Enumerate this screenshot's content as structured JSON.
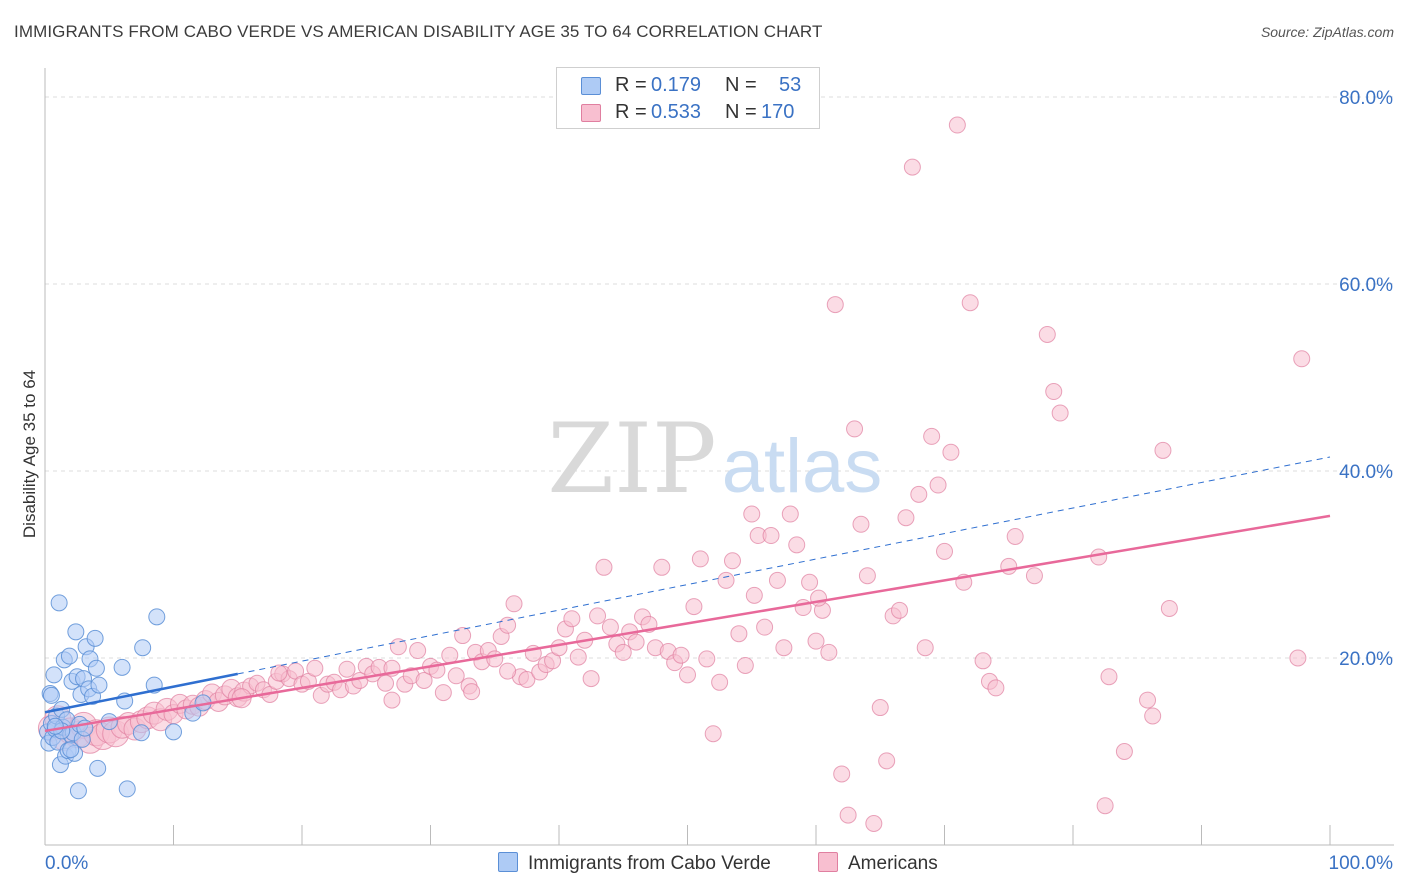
{
  "title": "IMMIGRANTS FROM CABO VERDE VS AMERICAN DISABILITY AGE 35 TO 64 CORRELATION CHART",
  "source": "Source: ZipAtlas.com",
  "watermark": {
    "zip": "ZIP",
    "atlas": "atlas"
  },
  "legend_top": [
    {
      "r_label": "R =",
      "r_value": "0.179",
      "n_label": "N =",
      "n_value": "53"
    },
    {
      "r_label": "R =",
      "r_value": "0.533",
      "n_label": "N =",
      "n_value": "170"
    }
  ],
  "legend_bottom": [
    "Immigrants from Cabo Verde",
    "Americans"
  ],
  "colors": {
    "blue_fill": "#aecbf5",
    "blue_stroke": "#5b8fd6",
    "blue_line": "#2f6fd0",
    "pink_fill": "#f8bfd0",
    "pink_stroke": "#e07fa0",
    "pink_line": "#e8699a",
    "axis_label": "#3a72c4",
    "grid": "#dcdcdc"
  },
  "chart_data": {
    "type": "scatter",
    "title": "IMMIGRANTS FROM CABO VERDE VS AMERICAN DISABILITY AGE 35 TO 64 CORRELATION CHART",
    "xlabel": "",
    "ylabel": "Disability Age 35 to 64",
    "xlim": [
      0,
      100
    ],
    "ylim": [
      0,
      80
    ],
    "x_tick_labels": [
      "0.0%",
      "100.0%"
    ],
    "y_ticks": [
      20,
      40,
      60,
      80
    ],
    "y_tick_labels": [
      "20.0%",
      "40.0%",
      "60.0%",
      "80.0%"
    ],
    "series": [
      {
        "name": "Immigrants from Cabo Verde",
        "R": 0.179,
        "N": 53,
        "trend": {
          "x": [
            0,
            15
          ],
          "y": [
            14.2,
            18.3
          ]
        },
        "trend_dashed": {
          "x": [
            15,
            100
          ],
          "y": [
            18.3,
            41.5
          ]
        },
        "points": [
          [
            0.2,
            12.1
          ],
          [
            0.3,
            10.9
          ],
          [
            0.4,
            16.2
          ],
          [
            0.5,
            13.0
          ],
          [
            0.6,
            11.5
          ],
          [
            0.7,
            18.2
          ],
          [
            0.8,
            12.4
          ],
          [
            0.9,
            13.8
          ],
          [
            1.0,
            11.0
          ],
          [
            1.1,
            25.9
          ],
          [
            1.2,
            8.6
          ],
          [
            1.3,
            14.5
          ],
          [
            1.4,
            12.6
          ],
          [
            1.5,
            19.8
          ],
          [
            1.6,
            9.5
          ],
          [
            1.7,
            13.4
          ],
          [
            1.8,
            10.1
          ],
          [
            1.9,
            20.2
          ],
          [
            2.0,
            11.8
          ],
          [
            2.1,
            17.5
          ],
          [
            2.2,
            12.0
          ],
          [
            2.3,
            9.8
          ],
          [
            2.4,
            22.8
          ],
          [
            2.5,
            18.0
          ],
          [
            2.6,
            5.8
          ],
          [
            2.7,
            12.9
          ],
          [
            2.8,
            16.1
          ],
          [
            2.9,
            11.3
          ],
          [
            3.0,
            17.8
          ],
          [
            3.1,
            12.5
          ],
          [
            3.2,
            21.2
          ],
          [
            3.4,
            16.7
          ],
          [
            3.5,
            19.9
          ],
          [
            3.7,
            15.9
          ],
          [
            3.9,
            22.1
          ],
          [
            4.0,
            18.9
          ],
          [
            4.1,
            8.2
          ],
          [
            4.2,
            17.1
          ],
          [
            5.0,
            13.2
          ],
          [
            6.0,
            19.0
          ],
          [
            6.2,
            15.4
          ],
          [
            6.4,
            6.0
          ],
          [
            7.5,
            12.0
          ],
          [
            7.6,
            21.1
          ],
          [
            8.5,
            17.1
          ],
          [
            8.7,
            24.4
          ],
          [
            10.0,
            12.1
          ],
          [
            11.5,
            14.1
          ],
          [
            12.3,
            15.2
          ],
          [
            0.5,
            16.0
          ],
          [
            1.3,
            12.2
          ],
          [
            2.0,
            10.2
          ],
          [
            0.8,
            12.7
          ]
        ]
      },
      {
        "name": "Americans",
        "R": 0.533,
        "N": 170,
        "trend": {
          "x": [
            0,
            100
          ],
          "y": [
            12.2,
            35.2
          ]
        },
        "points": [
          [
            0.5,
            12.5
          ],
          [
            1.0,
            13.5
          ],
          [
            1.5,
            11.5
          ],
          [
            2.0,
            12.2
          ],
          [
            2.5,
            11.8
          ],
          [
            3.0,
            12.8
          ],
          [
            3.5,
            11.2
          ],
          [
            4.0,
            12.0
          ],
          [
            4.5,
            11.6
          ],
          [
            5.0,
            12.3
          ],
          [
            5.5,
            11.9
          ],
          [
            6.0,
            12.6
          ],
          [
            6.5,
            13.0
          ],
          [
            7.0,
            12.4
          ],
          [
            7.5,
            13.2
          ],
          [
            8.0,
            13.6
          ],
          [
            8.5,
            14.1
          ],
          [
            9.0,
            13.4
          ],
          [
            9.5,
            14.5
          ],
          [
            10.0,
            14.0
          ],
          [
            10.5,
            15.1
          ],
          [
            11.0,
            14.5
          ],
          [
            11.5,
            15.0
          ],
          [
            12.0,
            14.8
          ],
          [
            12.5,
            15.5
          ],
          [
            13.0,
            16.2
          ],
          [
            13.5,
            15.3
          ],
          [
            14.0,
            16.0
          ],
          [
            14.5,
            16.7
          ],
          [
            15.0,
            15.8
          ],
          [
            15.5,
            16.4
          ],
          [
            16.0,
            17.0
          ],
          [
            16.5,
            17.3
          ],
          [
            17.0,
            16.6
          ],
          [
            17.5,
            16.1
          ],
          [
            18.0,
            17.5
          ],
          [
            18.5,
            18.3
          ],
          [
            19.0,
            17.8
          ],
          [
            19.5,
            18.6
          ],
          [
            20.0,
            17.2
          ],
          [
            20.5,
            17.5
          ],
          [
            21.0,
            18.9
          ],
          [
            21.5,
            16.0
          ],
          [
            22.0,
            17.2
          ],
          [
            22.5,
            17.4
          ],
          [
            23.0,
            16.6
          ],
          [
            23.5,
            18.8
          ],
          [
            24.0,
            17.0
          ],
          [
            24.5,
            17.6
          ],
          [
            25.0,
            19.1
          ],
          [
            25.5,
            18.3
          ],
          [
            26.0,
            19.0
          ],
          [
            26.5,
            17.3
          ],
          [
            27.0,
            18.9
          ],
          [
            27.5,
            21.2
          ],
          [
            28.0,
            17.2
          ],
          [
            28.5,
            18.1
          ],
          [
            29.0,
            20.8
          ],
          [
            29.5,
            17.6
          ],
          [
            30.0,
            19.1
          ],
          [
            30.5,
            18.7
          ],
          [
            31.0,
            16.3
          ],
          [
            31.5,
            20.3
          ],
          [
            32.0,
            18.1
          ],
          [
            32.5,
            22.4
          ],
          [
            33.0,
            17.0
          ],
          [
            33.5,
            20.6
          ],
          [
            34.0,
            19.6
          ],
          [
            34.5,
            20.8
          ],
          [
            35.0,
            19.9
          ],
          [
            35.5,
            22.3
          ],
          [
            36.0,
            23.5
          ],
          [
            36.5,
            25.8
          ],
          [
            37.0,
            18.0
          ],
          [
            37.5,
            17.7
          ],
          [
            38.0,
            20.5
          ],
          [
            38.5,
            18.5
          ],
          [
            39.0,
            19.3
          ],
          [
            39.5,
            19.7
          ],
          [
            40.0,
            21.1
          ],
          [
            40.5,
            23.1
          ],
          [
            41.0,
            24.2
          ],
          [
            41.5,
            20.1
          ],
          [
            42.0,
            21.9
          ],
          [
            42.5,
            17.8
          ],
          [
            43.0,
            24.5
          ],
          [
            43.5,
            29.7
          ],
          [
            44.0,
            23.3
          ],
          [
            44.5,
            21.5
          ],
          [
            45.0,
            20.6
          ],
          [
            45.5,
            22.8
          ],
          [
            46.0,
            21.7
          ],
          [
            46.5,
            24.4
          ],
          [
            47.0,
            23.6
          ],
          [
            47.5,
            21.1
          ],
          [
            48.0,
            29.7
          ],
          [
            48.5,
            20.7
          ],
          [
            49.0,
            19.5
          ],
          [
            49.5,
            20.3
          ],
          [
            50.0,
            18.2
          ],
          [
            50.5,
            25.5
          ],
          [
            51.0,
            30.6
          ],
          [
            51.5,
            19.9
          ],
          [
            52.0,
            11.9
          ],
          [
            52.5,
            17.4
          ],
          [
            53.0,
            28.3
          ],
          [
            53.5,
            30.4
          ],
          [
            54.0,
            22.6
          ],
          [
            54.5,
            19.2
          ],
          [
            55.0,
            35.4
          ],
          [
            55.5,
            33.1
          ],
          [
            56.0,
            23.3
          ],
          [
            56.5,
            33.1
          ],
          [
            57.0,
            28.3
          ],
          [
            57.5,
            21.1
          ],
          [
            58.0,
            35.4
          ],
          [
            58.5,
            32.1
          ],
          [
            59.0,
            25.4
          ],
          [
            59.5,
            28.1
          ],
          [
            60.0,
            21.8
          ],
          [
            60.5,
            25.1
          ],
          [
            61.0,
            20.6
          ],
          [
            61.5,
            57.8
          ],
          [
            62.0,
            7.6
          ],
          [
            62.5,
            3.2
          ],
          [
            63.0,
            44.5
          ],
          [
            63.5,
            34.3
          ],
          [
            64.0,
            28.8
          ],
          [
            64.5,
            2.3
          ],
          [
            65.0,
            14.7
          ],
          [
            65.5,
            9.0
          ],
          [
            66.0,
            24.5
          ],
          [
            66.5,
            25.1
          ],
          [
            67.0,
            35.0
          ],
          [
            67.5,
            72.5
          ],
          [
            68.0,
            37.5
          ],
          [
            68.5,
            21.1
          ],
          [
            69.0,
            43.7
          ],
          [
            69.5,
            38.5
          ],
          [
            70.0,
            31.4
          ],
          [
            70.5,
            42.0
          ],
          [
            71.0,
            77.0
          ],
          [
            71.5,
            28.1
          ],
          [
            72.0,
            58.0
          ],
          [
            73.0,
            19.7
          ],
          [
            73.5,
            17.5
          ],
          [
            74.0,
            16.8
          ],
          [
            75.0,
            29.8
          ],
          [
            75.5,
            33.0
          ],
          [
            77.0,
            28.8
          ],
          [
            78.0,
            54.6
          ],
          [
            78.5,
            48.5
          ],
          [
            79.0,
            46.2
          ],
          [
            82.0,
            30.8
          ],
          [
            82.5,
            4.2
          ],
          [
            82.8,
            18.0
          ],
          [
            84.0,
            10.0
          ],
          [
            85.8,
            15.5
          ],
          [
            86.2,
            13.8
          ],
          [
            87.0,
            42.2
          ],
          [
            87.5,
            25.3
          ],
          [
            97.5,
            20.0
          ],
          [
            97.8,
            52.0
          ],
          [
            15.3,
            15.7
          ],
          [
            18.2,
            18.4
          ],
          [
            27.0,
            15.5
          ],
          [
            33.2,
            16.4
          ],
          [
            55.2,
            26.7
          ],
          [
            36.0,
            18.6
          ],
          [
            60.2,
            26.4
          ]
        ]
      }
    ]
  }
}
